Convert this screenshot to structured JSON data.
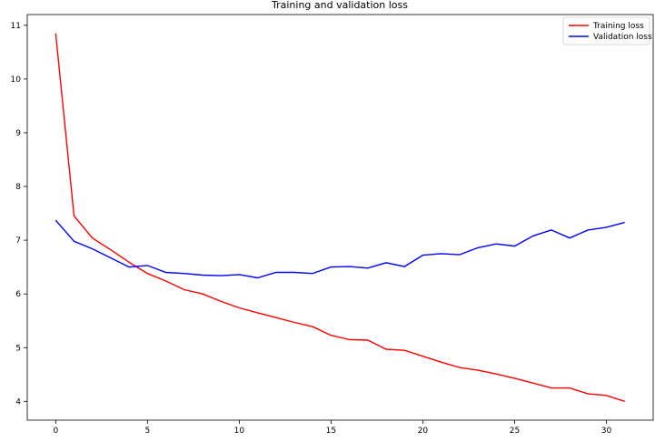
{
  "chart_data": {
    "type": "line",
    "title": "Training and validation loss",
    "xlabel": "",
    "ylabel": "",
    "xlim": [
      -1.55,
      32.55
    ],
    "ylim": [
      3.65,
      11.2
    ],
    "xticks": [
      0,
      5,
      10,
      15,
      20,
      25,
      30
    ],
    "yticks": [
      4,
      5,
      6,
      7,
      8,
      9,
      10,
      11
    ],
    "grid": false,
    "legend": "top-right",
    "x": [
      0,
      1,
      2,
      3,
      4,
      5,
      6,
      7,
      8,
      9,
      10,
      11,
      12,
      13,
      14,
      15,
      16,
      17,
      18,
      19,
      20,
      21,
      22,
      23,
      24,
      25,
      26,
      27,
      28,
      29,
      30,
      31
    ],
    "series": [
      {
        "name": "Training loss",
        "color": "#ff0000",
        "values": [
          10.85,
          7.45,
          7.04,
          6.82,
          6.59,
          6.38,
          6.24,
          6.08,
          6.0,
          5.86,
          5.74,
          5.65,
          5.56,
          5.47,
          5.39,
          5.23,
          5.15,
          5.14,
          4.97,
          4.95,
          4.84,
          4.73,
          4.63,
          4.58,
          4.51,
          4.43,
          4.34,
          4.25,
          4.25,
          4.14,
          4.11,
          4.0
        ]
      },
      {
        "name": "Validation loss",
        "color": "#0000ff",
        "values": [
          7.37,
          6.98,
          6.84,
          6.67,
          6.5,
          6.53,
          6.4,
          6.38,
          6.35,
          6.34,
          6.36,
          6.3,
          6.4,
          6.4,
          6.38,
          6.5,
          6.51,
          6.48,
          6.58,
          6.51,
          6.72,
          6.75,
          6.73,
          6.86,
          6.93,
          6.89,
          7.08,
          7.19,
          7.04,
          7.19,
          7.24,
          7.33
        ]
      }
    ]
  }
}
